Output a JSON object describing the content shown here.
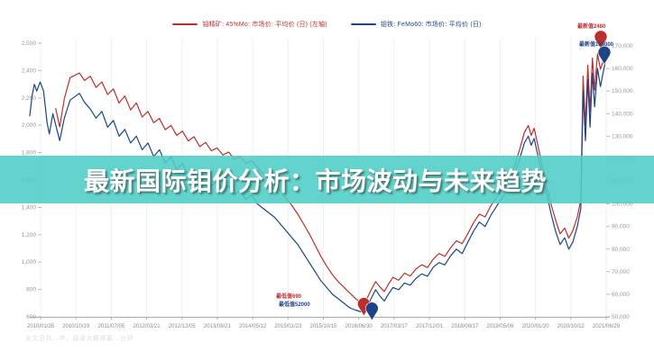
{
  "banner": {
    "title": "最新国际钼价分析：市场波动与未来趋势"
  },
  "watermark": {
    "text": "全文总共…字，阅读大概需要…分钟"
  },
  "colors": {
    "red_series": "#bb2f2e",
    "blue_series": "#1c4587",
    "banner_teal": "#4dcec6",
    "grid": "#ededed",
    "axis_text": "#999999"
  },
  "chart_data": {
    "type": "line",
    "title": "",
    "legend_position": "top-center",
    "grid": "vertical-only",
    "x_axis": {
      "labels": [
        "2010/01/25",
        "2010/10/19",
        "2011/07/05",
        "2012/03/21",
        "2012/12/05",
        "2013/08/21",
        "2014/05/12",
        "2015/01/23",
        "2015/10/15",
        "2016/06/30",
        "2017/03/17",
        "2017/12/01",
        "2018/08/17",
        "2019/05/06",
        "2020/01/20",
        "2020/10/12",
        "2021/06/29"
      ]
    },
    "y_axis_left": {
      "ticks": [
        "2,500",
        "2,400",
        "2,200",
        "2,000",
        "1,800",
        "1,600",
        "1,400",
        "1,200",
        "1,000",
        "800",
        "600"
      ],
      "min": 600,
      "max": 2500
    },
    "y_axis_right": {
      "ticks": [
        "170,000",
        "160,000",
        "150,000",
        "140,000",
        "130,000",
        "120,000",
        "110,000",
        "100,000",
        "90,000",
        "80,000",
        "70,000",
        "60,000",
        "50,000"
      ],
      "min": 50000,
      "max": 170000
    },
    "series": [
      {
        "name": "钼精矿: 45%Mo: 市场价: 平均价 (日) (左轴)",
        "axis": "left",
        "color": "#bb2f2e",
        "points": [
          [
            0.045,
            2080
          ],
          [
            0.052,
            1950
          ],
          [
            0.06,
            2150
          ],
          [
            0.07,
            2300
          ],
          [
            0.086,
            2333
          ],
          [
            0.095,
            2280
          ],
          [
            0.105,
            2310
          ],
          [
            0.115,
            2230
          ],
          [
            0.125,
            2270
          ],
          [
            0.135,
            2180
          ],
          [
            0.145,
            2220
          ],
          [
            0.155,
            2120
          ],
          [
            0.165,
            2170
          ],
          [
            0.175,
            2070
          ],
          [
            0.185,
            2120
          ],
          [
            0.195,
            2020
          ],
          [
            0.205,
            2060
          ],
          [
            0.215,
            1980
          ],
          [
            0.225,
            2010
          ],
          [
            0.235,
            1930
          ],
          [
            0.245,
            1960
          ],
          [
            0.255,
            1890
          ],
          [
            0.265,
            1920
          ],
          [
            0.275,
            1850
          ],
          [
            0.285,
            1880
          ],
          [
            0.295,
            1810
          ],
          [
            0.305,
            1840
          ],
          [
            0.315,
            1780
          ],
          [
            0.325,
            1800
          ],
          [
            0.335,
            1750
          ],
          [
            0.345,
            1770
          ],
          [
            0.355,
            1720
          ],
          [
            0.365,
            1740
          ],
          [
            0.375,
            1690
          ],
          [
            0.385,
            1710
          ],
          [
            0.395,
            1660
          ],
          [
            0.405,
            1620
          ],
          [
            0.415,
            1580
          ],
          [
            0.425,
            1540
          ],
          [
            0.435,
            1490
          ],
          [
            0.445,
            1440
          ],
          [
            0.455,
            1390
          ],
          [
            0.465,
            1330
          ],
          [
            0.475,
            1260
          ],
          [
            0.485,
            1190
          ],
          [
            0.495,
            1110
          ],
          [
            0.505,
            1030
          ],
          [
            0.515,
            960
          ],
          [
            0.525,
            900
          ],
          [
            0.535,
            850
          ],
          [
            0.545,
            810
          ],
          [
            0.555,
            770
          ],
          [
            0.565,
            730
          ],
          [
            0.578,
            690
          ],
          [
            0.585,
            730
          ],
          [
            0.592,
            790
          ],
          [
            0.6,
            850
          ],
          [
            0.608,
            810
          ],
          [
            0.615,
            780
          ],
          [
            0.622,
            830
          ],
          [
            0.63,
            880
          ],
          [
            0.64,
            860
          ],
          [
            0.65,
            910
          ],
          [
            0.66,
            890
          ],
          [
            0.67,
            940
          ],
          [
            0.68,
            970
          ],
          [
            0.69,
            950
          ],
          [
            0.7,
            1010
          ],
          [
            0.71,
            1050
          ],
          [
            0.72,
            1030
          ],
          [
            0.73,
            1090
          ],
          [
            0.74,
            1140
          ],
          [
            0.75,
            1120
          ],
          [
            0.76,
            1190
          ],
          [
            0.77,
            1270
          ],
          [
            0.78,
            1330
          ],
          [
            0.79,
            1310
          ],
          [
            0.8,
            1390
          ],
          [
            0.81,
            1450
          ],
          [
            0.82,
            1510
          ],
          [
            0.83,
            1570
          ],
          [
            0.84,
            1660
          ],
          [
            0.85,
            1790
          ],
          [
            0.858,
            1910
          ],
          [
            0.865,
            1960
          ],
          [
            0.87,
            1890
          ],
          [
            0.875,
            1940
          ],
          [
            0.882,
            1810
          ],
          [
            0.89,
            1660
          ],
          [
            0.898,
            1510
          ],
          [
            0.905,
            1390
          ],
          [
            0.912,
            1290
          ],
          [
            0.92,
            1190
          ],
          [
            0.928,
            1230
          ],
          [
            0.935,
            1160
          ],
          [
            0.942,
            1210
          ],
          [
            0.95,
            1310
          ],
          [
            0.956,
            1430
          ],
          [
            0.96,
            2310
          ],
          [
            0.964,
            1960
          ],
          [
            0.968,
            2390
          ],
          [
            0.972,
            2060
          ],
          [
            0.976,
            2440
          ],
          [
            0.98,
            2210
          ],
          [
            0.985,
            2470
          ],
          [
            0.99,
            2360
          ],
          [
            1.0,
            2480
          ]
        ]
      },
      {
        "name": "钼铁: FeMo60: 市场价: 平均价 (日)",
        "axis": "right",
        "color": "#1c4587",
        "points": [
          [
            0.0,
            139000
          ],
          [
            0.004,
            148000
          ],
          [
            0.008,
            153000
          ],
          [
            0.012,
            150000
          ],
          [
            0.018,
            154000
          ],
          [
            0.024,
            150000
          ],
          [
            0.03,
            136000
          ],
          [
            0.034,
            131000
          ],
          [
            0.04,
            140000
          ],
          [
            0.046,
            134000
          ],
          [
            0.052,
            128000
          ],
          [
            0.06,
            138000
          ],
          [
            0.07,
            146000
          ],
          [
            0.086,
            149000
          ],
          [
            0.095,
            145000
          ],
          [
            0.105,
            142000
          ],
          [
            0.115,
            138000
          ],
          [
            0.125,
            141000
          ],
          [
            0.135,
            134000
          ],
          [
            0.145,
            137000
          ],
          [
            0.155,
            130000
          ],
          [
            0.165,
            133000
          ],
          [
            0.175,
            127000
          ],
          [
            0.185,
            130000
          ],
          [
            0.195,
            124000
          ],
          [
            0.205,
            127000
          ],
          [
            0.215,
            121000
          ],
          [
            0.225,
            124000
          ],
          [
            0.235,
            118000
          ],
          [
            0.245,
            121000
          ],
          [
            0.255,
            115000
          ],
          [
            0.265,
            118000
          ],
          [
            0.275,
            113000
          ],
          [
            0.285,
            115000
          ],
          [
            0.295,
            110000
          ],
          [
            0.305,
            112000
          ],
          [
            0.315,
            108000
          ],
          [
            0.325,
            110000
          ],
          [
            0.335,
            106000
          ],
          [
            0.345,
            108000
          ],
          [
            0.355,
            104000
          ],
          [
            0.365,
            106000
          ],
          [
            0.375,
            102000
          ],
          [
            0.385,
            104000
          ],
          [
            0.395,
            100000
          ],
          [
            0.405,
            98000
          ],
          [
            0.415,
            96000
          ],
          [
            0.425,
            94000
          ],
          [
            0.435,
            91000
          ],
          [
            0.445,
            88000
          ],
          [
            0.455,
            85000
          ],
          [
            0.465,
            82000
          ],
          [
            0.475,
            78000
          ],
          [
            0.485,
            74000
          ],
          [
            0.495,
            70000
          ],
          [
            0.505,
            66000
          ],
          [
            0.515,
            63000
          ],
          [
            0.525,
            60000
          ],
          [
            0.535,
            58000
          ],
          [
            0.545,
            56000
          ],
          [
            0.555,
            54000
          ],
          [
            0.565,
            53000
          ],
          [
            0.578,
            52000
          ],
          [
            0.585,
            54000
          ],
          [
            0.592,
            58000
          ],
          [
            0.6,
            62000
          ],
          [
            0.608,
            59000
          ],
          [
            0.615,
            57000
          ],
          [
            0.622,
            60000
          ],
          [
            0.63,
            63000
          ],
          [
            0.64,
            62000
          ],
          [
            0.65,
            65000
          ],
          [
            0.66,
            64000
          ],
          [
            0.67,
            67000
          ],
          [
            0.68,
            69000
          ],
          [
            0.69,
            68000
          ],
          [
            0.7,
            72000
          ],
          [
            0.71,
            74000
          ],
          [
            0.72,
            73000
          ],
          [
            0.73,
            77000
          ],
          [
            0.74,
            80000
          ],
          [
            0.75,
            78000
          ],
          [
            0.76,
            83000
          ],
          [
            0.77,
            88000
          ],
          [
            0.78,
            92000
          ],
          [
            0.79,
            90000
          ],
          [
            0.8,
            95000
          ],
          [
            0.81,
            99000
          ],
          [
            0.82,
            103000
          ],
          [
            0.83,
            107000
          ],
          [
            0.84,
            112000
          ],
          [
            0.85,
            120000
          ],
          [
            0.858,
            127000
          ],
          [
            0.865,
            130000
          ],
          [
            0.87,
            126000
          ],
          [
            0.875,
            129000
          ],
          [
            0.882,
            121000
          ],
          [
            0.89,
            112000
          ],
          [
            0.898,
            103000
          ],
          [
            0.905,
            95000
          ],
          [
            0.912,
            88000
          ],
          [
            0.92,
            82000
          ],
          [
            0.928,
            85000
          ],
          [
            0.935,
            80000
          ],
          [
            0.942,
            83000
          ],
          [
            0.95,
            90000
          ],
          [
            0.956,
            98000
          ],
          [
            0.96,
            150000
          ],
          [
            0.964,
            128000
          ],
          [
            0.968,
            155000
          ],
          [
            0.972,
            134000
          ],
          [
            0.976,
            158000
          ],
          [
            0.98,
            143000
          ],
          [
            0.985,
            160000
          ],
          [
            0.99,
            152000
          ],
          [
            1.0,
            165000
          ]
        ]
      }
    ],
    "annotations": [
      {
        "key": "latest_red",
        "label": "最新值2480",
        "color": "#bb2f2e",
        "t": 1.0,
        "value": 2480,
        "axis": "left"
      },
      {
        "key": "latest_blue",
        "label": "最新值165000",
        "color": "#1c4587",
        "t": 1.0,
        "value": 165000,
        "axis": "right"
      },
      {
        "key": "lowest_red",
        "label": "最低值690",
        "color": "#bb2f2e",
        "t": 0.578,
        "value": 690,
        "axis": "left"
      },
      {
        "key": "lowest_blue",
        "label": "最低值52000",
        "color": "#1c4587",
        "t": 0.578,
        "value": 52000,
        "axis": "right"
      }
    ]
  }
}
